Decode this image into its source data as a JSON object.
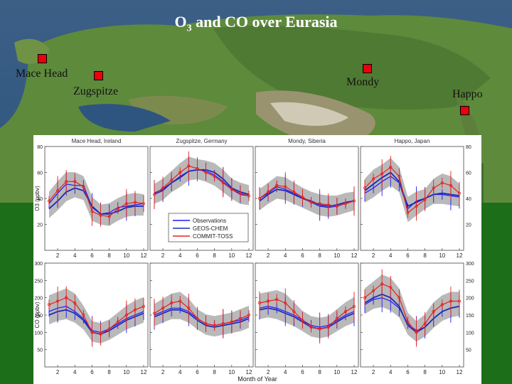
{
  "slide": {
    "title_main": "O",
    "title_sub": "3",
    "title_rest": " and CO over Eurasia"
  },
  "sites": [
    {
      "label": "Mace Head"
    },
    {
      "label": "Zugspitze"
    },
    {
      "label": "Mondy"
    },
    {
      "label": "Happo"
    }
  ],
  "colors": {
    "observations": "#1a1aff",
    "geos_chem": "#1a2ab8",
    "commit": "#e8201a",
    "band": "#b9b9b9",
    "marker": "#e8000b"
  },
  "chart_data": {
    "type": "line",
    "panel_titles": [
      "Mace Head, Ireland",
      "Zugspitze, Germany",
      "Mondy, Siberia",
      "Happo, Japan"
    ],
    "xlabel": "Month of Year",
    "x": [
      1,
      2,
      3,
      4,
      5,
      6,
      7,
      8,
      9,
      10,
      11,
      12
    ],
    "x_ticks": [
      2,
      4,
      6,
      8,
      10,
      12
    ],
    "legend": [
      "Observations",
      "GEOS-CHEM",
      "COMMIT-TOSS"
    ],
    "o3": {
      "ylabel": "O3 (ppbv)",
      "ylim": [
        0,
        80
      ],
      "y_ticks": [
        20,
        40,
        60,
        80
      ],
      "panels": [
        {
          "obs": [
            36,
            44,
            51,
            50,
            50,
            33,
            28,
            29,
            33,
            34,
            35,
            36
          ],
          "geos": [
            32,
            38,
            45,
            48,
            46,
            34,
            28,
            28,
            30,
            33,
            34,
            34
          ],
          "commit": [
            38,
            46,
            53,
            53,
            49,
            30,
            27,
            26,
            32,
            36,
            37,
            36
          ]
        },
        {
          "obs": [
            43,
            46,
            52,
            57,
            61,
            62,
            61,
            58,
            53,
            47,
            43,
            42
          ],
          "geos": [
            44,
            47,
            52,
            56,
            61,
            62,
            62,
            60,
            55,
            48,
            45,
            43
          ],
          "commit": [
            43,
            48,
            54,
            60,
            65,
            63,
            60,
            57,
            52,
            47,
            44,
            42
          ]
        },
        {
          "obs": [
            40,
            44,
            49,
            47,
            44,
            40,
            37,
            34,
            33,
            34,
            36,
            38
          ],
          "geos": [
            38,
            43,
            47,
            46,
            43,
            40,
            38,
            35,
            34,
            35,
            37,
            38
          ],
          "commit": [
            40,
            45,
            50,
            49,
            45,
            41,
            37,
            36,
            35,
            34,
            36,
            38
          ]
        },
        {
          "obs": [
            44,
            48,
            53,
            57,
            52,
            32,
            38,
            40,
            43,
            43,
            42,
            41
          ],
          "geos": [
            46,
            51,
            56,
            60,
            53,
            34,
            37,
            40,
            43,
            44,
            43,
            42
          ],
          "commit": [
            48,
            55,
            59,
            64,
            57,
            29,
            34,
            39,
            48,
            52,
            50,
            44
          ]
        }
      ]
    },
    "co": {
      "ylabel": "CO (ppbv)",
      "ylim": [
        0,
        300
      ],
      "y_ticks": [
        50,
        100,
        150,
        200,
        250,
        300
      ],
      "panels": [
        {
          "obs": [
            160,
            170,
            175,
            160,
            140,
            105,
            100,
            110,
            125,
            140,
            150,
            160
          ],
          "geos": [
            150,
            160,
            165,
            155,
            135,
            100,
            95,
            105,
            120,
            135,
            145,
            155
          ],
          "commit": [
            180,
            190,
            200,
            185,
            150,
            100,
            95,
            110,
            130,
            150,
            165,
            175
          ]
        },
        {
          "obs": [
            150,
            160,
            170,
            170,
            160,
            140,
            125,
            120,
            125,
            130,
            135,
            145
          ],
          "geos": [
            145,
            155,
            165,
            165,
            155,
            135,
            120,
            115,
            120,
            125,
            130,
            140
          ],
          "commit": [
            155,
            170,
            185,
            190,
            170,
            140,
            125,
            120,
            125,
            130,
            140,
            150
          ]
        },
        {
          "obs": [
            170,
            175,
            170,
            160,
            150,
            135,
            120,
            115,
            120,
            135,
            150,
            160
          ],
          "geos": [
            165,
            170,
            165,
            155,
            145,
            130,
            115,
            110,
            115,
            130,
            145,
            155
          ],
          "commit": [
            185,
            190,
            195,
            185,
            160,
            135,
            115,
            110,
            115,
            140,
            160,
            175
          ]
        },
        {
          "obs": [
            180,
            195,
            200,
            190,
            170,
            125,
            105,
            115,
            140,
            160,
            170,
            175
          ],
          "geos": [
            185,
            200,
            210,
            200,
            175,
            120,
            100,
            115,
            140,
            160,
            170,
            175
          ],
          "commit": [
            200,
            220,
            240,
            230,
            200,
            130,
            100,
            125,
            160,
            180,
            190,
            190
          ]
        }
      ]
    }
  }
}
